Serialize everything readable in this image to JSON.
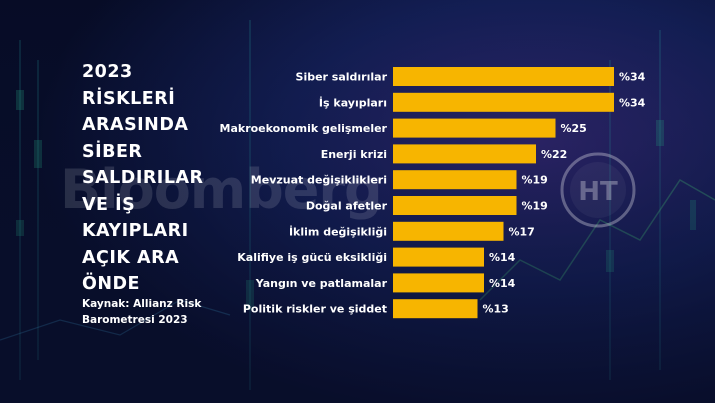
{
  "title_lines": [
    "2023",
    "RİSKLERİ",
    "ARASINDA",
    "SİBER",
    "SALDIRILAR",
    "VE İŞ",
    "KAYIPLARI",
    "AÇIK ARA",
    "ÖNDE"
  ],
  "source_lines": [
    "Kaynak: Allianz Risk",
    "Barometresi 2023"
  ],
  "watermark": "Bloomberg",
  "logo_letters": "HT",
  "colors": {
    "bar": "#f7b500",
    "text": "#ffffff",
    "background": "#0a1030"
  },
  "chart_data": {
    "type": "bar",
    "orientation": "horizontal",
    "categories": [
      "Siber saldırılar",
      "İş kayıpları",
      "Makroekonomik gelişmeler",
      "Enerji krizi",
      "Mevzuat değişiklikleri",
      "Doğal afetler",
      "İklim değişikliği",
      "Kalifiye iş gücü eksikliği",
      "Yangın ve patlamalar",
      "Politik riskler ve şiddet"
    ],
    "values": [
      34,
      34,
      25,
      22,
      19,
      19,
      17,
      14,
      14,
      13
    ],
    "value_labels": [
      "%34",
      "%34",
      "%25",
      "%22",
      "%19",
      "%19",
      "%17",
      "%14",
      "%14",
      "%13"
    ],
    "xlim": [
      0,
      34
    ],
    "grid": false,
    "legend": "none"
  }
}
